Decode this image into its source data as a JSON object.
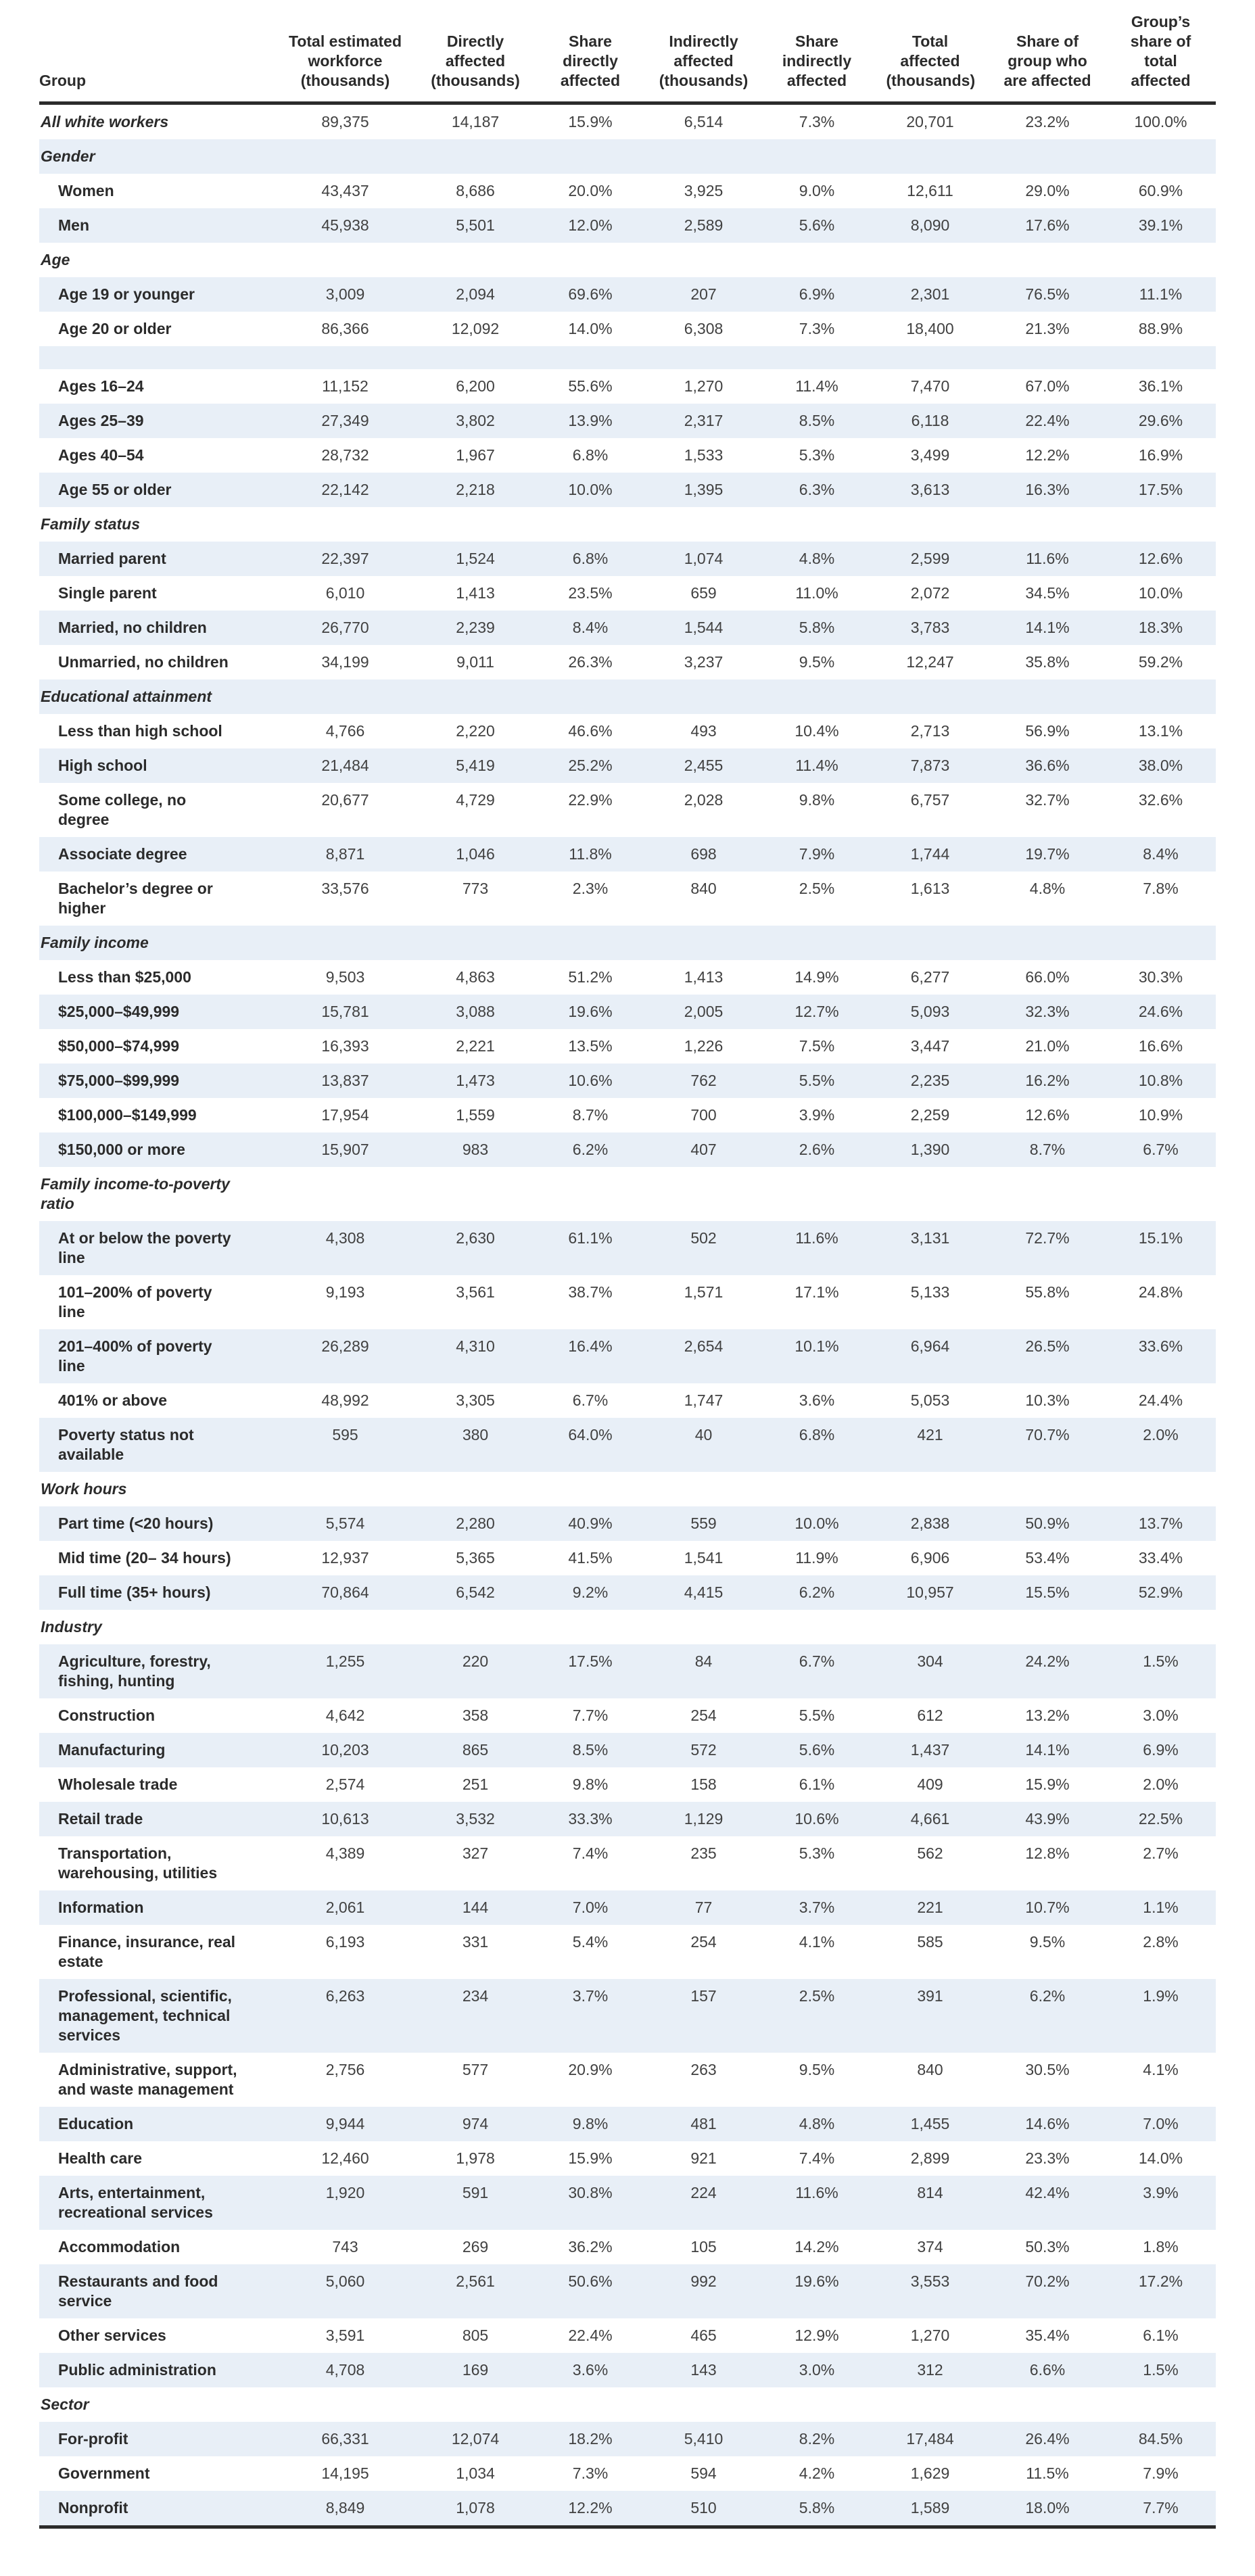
{
  "colors": {
    "stripe": "#e8eff7",
    "rule": "#2b2b2b",
    "label_text": "#2b2b2b",
    "value_text": "#414141"
  },
  "chart_data": {
    "type": "table",
    "title": "",
    "columns": [
      "Group",
      "Total estimated workforce (thousands)",
      "Directly affected (thousands)",
      "Share directly affected",
      "Indirectly affected (thousands)",
      "Share indirectly affected",
      "Total affected (thousands)",
      "Share of group who are affected",
      "Group’s share of total affected"
    ],
    "rows": [
      {
        "kind": "total",
        "label": "All white workers",
        "values": [
          "89,375",
          "14,187",
          "15.9%",
          "6,514",
          "7.3%",
          "20,701",
          "23.2%",
          "100.0%"
        ]
      },
      {
        "kind": "section",
        "label": "Gender"
      },
      {
        "kind": "data",
        "label": "Women",
        "values": [
          "43,437",
          "8,686",
          "20.0%",
          "3,925",
          "9.0%",
          "12,611",
          "29.0%",
          "60.9%"
        ]
      },
      {
        "kind": "data",
        "label": "Men",
        "values": [
          "45,938",
          "5,501",
          "12.0%",
          "2,589",
          "5.6%",
          "8,090",
          "17.6%",
          "39.1%"
        ]
      },
      {
        "kind": "section",
        "label": "Age"
      },
      {
        "kind": "data",
        "label": "Age 19 or younger",
        "values": [
          "3,009",
          "2,094",
          "69.6%",
          "207",
          "6.9%",
          "2,301",
          "76.5%",
          "11.1%"
        ]
      },
      {
        "kind": "data",
        "label": "Age 20 or older",
        "values": [
          "86,366",
          "12,092",
          "14.0%",
          "6,308",
          "7.3%",
          "18,400",
          "21.3%",
          "88.9%"
        ]
      },
      {
        "kind": "spacer"
      },
      {
        "kind": "data",
        "label": "Ages 16–24",
        "values": [
          "11,152",
          "6,200",
          "55.6%",
          "1,270",
          "11.4%",
          "7,470",
          "67.0%",
          "36.1%"
        ]
      },
      {
        "kind": "data",
        "label": "Ages 25–39",
        "values": [
          "27,349",
          "3,802",
          "13.9%",
          "2,317",
          "8.5%",
          "6,118",
          "22.4%",
          "29.6%"
        ]
      },
      {
        "kind": "data",
        "label": "Ages 40–54",
        "values": [
          "28,732",
          "1,967",
          "6.8%",
          "1,533",
          "5.3%",
          "3,499",
          "12.2%",
          "16.9%"
        ]
      },
      {
        "kind": "data",
        "label": "Age 55 or older",
        "values": [
          "22,142",
          "2,218",
          "10.0%",
          "1,395",
          "6.3%",
          "3,613",
          "16.3%",
          "17.5%"
        ]
      },
      {
        "kind": "section",
        "label": "Family status"
      },
      {
        "kind": "data",
        "label": "Married parent",
        "values": [
          "22,397",
          "1,524",
          "6.8%",
          "1,074",
          "4.8%",
          "2,599",
          "11.6%",
          "12.6%"
        ]
      },
      {
        "kind": "data",
        "label": "Single parent",
        "values": [
          "6,010",
          "1,413",
          "23.5%",
          "659",
          "11.0%",
          "2,072",
          "34.5%",
          "10.0%"
        ]
      },
      {
        "kind": "data",
        "label": "Married, no children",
        "values": [
          "26,770",
          "2,239",
          "8.4%",
          "1,544",
          "5.8%",
          "3,783",
          "14.1%",
          "18.3%"
        ]
      },
      {
        "kind": "data",
        "label": "Unmarried, no children",
        "values": [
          "34,199",
          "9,011",
          "26.3%",
          "3,237",
          "9.5%",
          "12,247",
          "35.8%",
          "59.2%"
        ]
      },
      {
        "kind": "section",
        "label": "Educational attainment"
      },
      {
        "kind": "data",
        "label": "Less than high school",
        "values": [
          "4,766",
          "2,220",
          "46.6%",
          "493",
          "10.4%",
          "2,713",
          "56.9%",
          "13.1%"
        ]
      },
      {
        "kind": "data",
        "label": "High school",
        "values": [
          "21,484",
          "5,419",
          "25.2%",
          "2,455",
          "11.4%",
          "7,873",
          "36.6%",
          "38.0%"
        ]
      },
      {
        "kind": "data",
        "label": "Some college, no degree",
        "values": [
          "20,677",
          "4,729",
          "22.9%",
          "2,028",
          "9.8%",
          "6,757",
          "32.7%",
          "32.6%"
        ]
      },
      {
        "kind": "data",
        "label": "Associate degree",
        "values": [
          "8,871",
          "1,046",
          "11.8%",
          "698",
          "7.9%",
          "1,744",
          "19.7%",
          "8.4%"
        ]
      },
      {
        "kind": "data",
        "label": "Bachelor’s degree or higher",
        "values": [
          "33,576",
          "773",
          "2.3%",
          "840",
          "2.5%",
          "1,613",
          "4.8%",
          "7.8%"
        ]
      },
      {
        "kind": "section",
        "label": "Family income"
      },
      {
        "kind": "data",
        "label": "Less than $25,000",
        "values": [
          "9,503",
          "4,863",
          "51.2%",
          "1,413",
          "14.9%",
          "6,277",
          "66.0%",
          "30.3%"
        ]
      },
      {
        "kind": "data",
        "label": "$25,000–$49,999",
        "values": [
          "15,781",
          "3,088",
          "19.6%",
          "2,005",
          "12.7%",
          "5,093",
          "32.3%",
          "24.6%"
        ]
      },
      {
        "kind": "data",
        "label": "$50,000–$74,999",
        "values": [
          "16,393",
          "2,221",
          "13.5%",
          "1,226",
          "7.5%",
          "3,447",
          "21.0%",
          "16.6%"
        ]
      },
      {
        "kind": "data",
        "label": "$75,000–$99,999",
        "values": [
          "13,837",
          "1,473",
          "10.6%",
          "762",
          "5.5%",
          "2,235",
          "16.2%",
          "10.8%"
        ]
      },
      {
        "kind": "data",
        "label": "$100,000–$149,999",
        "values": [
          "17,954",
          "1,559",
          "8.7%",
          "700",
          "3.9%",
          "2,259",
          "12.6%",
          "10.9%"
        ]
      },
      {
        "kind": "data",
        "label": "$150,000 or more",
        "values": [
          "15,907",
          "983",
          "6.2%",
          "407",
          "2.6%",
          "1,390",
          "8.7%",
          "6.7%"
        ]
      },
      {
        "kind": "section",
        "label": "Family income-to-poverty ratio"
      },
      {
        "kind": "data",
        "label": "At or below the poverty line",
        "values": [
          "4,308",
          "2,630",
          "61.1%",
          "502",
          "11.6%",
          "3,131",
          "72.7%",
          "15.1%"
        ]
      },
      {
        "kind": "data",
        "label": "101–200% of poverty line",
        "values": [
          "9,193",
          "3,561",
          "38.7%",
          "1,571",
          "17.1%",
          "5,133",
          "55.8%",
          "24.8%"
        ]
      },
      {
        "kind": "data",
        "label": "201–400% of poverty line",
        "values": [
          "26,289",
          "4,310",
          "16.4%",
          "2,654",
          "10.1%",
          "6,964",
          "26.5%",
          "33.6%"
        ]
      },
      {
        "kind": "data",
        "label": "401% or above",
        "values": [
          "48,992",
          "3,305",
          "6.7%",
          "1,747",
          "3.6%",
          "5,053",
          "10.3%",
          "24.4%"
        ]
      },
      {
        "kind": "data",
        "label": "Poverty status not available",
        "values": [
          "595",
          "380",
          "64.0%",
          "40",
          "6.8%",
          "421",
          "70.7%",
          "2.0%"
        ]
      },
      {
        "kind": "section",
        "label": "Work hours"
      },
      {
        "kind": "data",
        "label": "Part time (<20 hours)",
        "values": [
          "5,574",
          "2,280",
          "40.9%",
          "559",
          "10.0%",
          "2,838",
          "50.9%",
          "13.7%"
        ]
      },
      {
        "kind": "data",
        "label": "Mid time (20– 34 hours)",
        "values": [
          "12,937",
          "5,365",
          "41.5%",
          "1,541",
          "11.9%",
          "6,906",
          "53.4%",
          "33.4%"
        ]
      },
      {
        "kind": "data",
        "label": "Full time (35+ hours)",
        "values": [
          "70,864",
          "6,542",
          "9.2%",
          "4,415",
          "6.2%",
          "10,957",
          "15.5%",
          "52.9%"
        ]
      },
      {
        "kind": "section",
        "label": "Industry"
      },
      {
        "kind": "data",
        "label": "Agriculture, forestry, fishing, hunting",
        "values": [
          "1,255",
          "220",
          "17.5%",
          "84",
          "6.7%",
          "304",
          "24.2%",
          "1.5%"
        ]
      },
      {
        "kind": "data",
        "label": "Construction",
        "values": [
          "4,642",
          "358",
          "7.7%",
          "254",
          "5.5%",
          "612",
          "13.2%",
          "3.0%"
        ]
      },
      {
        "kind": "data",
        "label": "Manufacturing",
        "values": [
          "10,203",
          "865",
          "8.5%",
          "572",
          "5.6%",
          "1,437",
          "14.1%",
          "6.9%"
        ]
      },
      {
        "kind": "data",
        "label": "Wholesale trade",
        "values": [
          "2,574",
          "251",
          "9.8%",
          "158",
          "6.1%",
          "409",
          "15.9%",
          "2.0%"
        ]
      },
      {
        "kind": "data",
        "label": "Retail trade",
        "values": [
          "10,613",
          "3,532",
          "33.3%",
          "1,129",
          "10.6%",
          "4,661",
          "43.9%",
          "22.5%"
        ]
      },
      {
        "kind": "data",
        "label": "Transportation, warehousing, utilities",
        "values": [
          "4,389",
          "327",
          "7.4%",
          "235",
          "5.3%",
          "562",
          "12.8%",
          "2.7%"
        ]
      },
      {
        "kind": "data",
        "label": "Information",
        "values": [
          "2,061",
          "144",
          "7.0%",
          "77",
          "3.7%",
          "221",
          "10.7%",
          "1.1%"
        ]
      },
      {
        "kind": "data",
        "label": "Finance, insurance, real estate",
        "values": [
          "6,193",
          "331",
          "5.4%",
          "254",
          "4.1%",
          "585",
          "9.5%",
          "2.8%"
        ]
      },
      {
        "kind": "data",
        "label": "Professional, scientific, management, technical services",
        "values": [
          "6,263",
          "234",
          "3.7%",
          "157",
          "2.5%",
          "391",
          "6.2%",
          "1.9%"
        ]
      },
      {
        "kind": "data",
        "label": "Administrative, support, and waste management",
        "values": [
          "2,756",
          "577",
          "20.9%",
          "263",
          "9.5%",
          "840",
          "30.5%",
          "4.1%"
        ]
      },
      {
        "kind": "data",
        "label": "Education",
        "values": [
          "9,944",
          "974",
          "9.8%",
          "481",
          "4.8%",
          "1,455",
          "14.6%",
          "7.0%"
        ]
      },
      {
        "kind": "data",
        "label": "Health care",
        "values": [
          "12,460",
          "1,978",
          "15.9%",
          "921",
          "7.4%",
          "2,899",
          "23.3%",
          "14.0%"
        ]
      },
      {
        "kind": "data",
        "label": "Arts, entertainment, recreational services",
        "values": [
          "1,920",
          "591",
          "30.8%",
          "224",
          "11.6%",
          "814",
          "42.4%",
          "3.9%"
        ]
      },
      {
        "kind": "data",
        "label": "Accommodation",
        "values": [
          "743",
          "269",
          "36.2%",
          "105",
          "14.2%",
          "374",
          "50.3%",
          "1.8%"
        ]
      },
      {
        "kind": "data",
        "label": "Restaurants and food service",
        "values": [
          "5,060",
          "2,561",
          "50.6%",
          "992",
          "19.6%",
          "3,553",
          "70.2%",
          "17.2%"
        ]
      },
      {
        "kind": "data",
        "label": "Other services",
        "values": [
          "3,591",
          "805",
          "22.4%",
          "465",
          "12.9%",
          "1,270",
          "35.4%",
          "6.1%"
        ]
      },
      {
        "kind": "data",
        "label": "Public administration",
        "values": [
          "4,708",
          "169",
          "3.6%",
          "143",
          "3.0%",
          "312",
          "6.6%",
          "1.5%"
        ]
      },
      {
        "kind": "section",
        "label": "Sector"
      },
      {
        "kind": "data",
        "label": "For-profit",
        "values": [
          "66,331",
          "12,074",
          "18.2%",
          "5,410",
          "8.2%",
          "17,484",
          "26.4%",
          "84.5%"
        ]
      },
      {
        "kind": "data",
        "label": "Government",
        "values": [
          "14,195",
          "1,034",
          "7.3%",
          "594",
          "4.2%",
          "1,629",
          "11.5%",
          "7.9%"
        ]
      },
      {
        "kind": "data",
        "label": "Nonprofit",
        "values": [
          "8,849",
          "1,078",
          "12.2%",
          "510",
          "5.8%",
          "1,589",
          "18.0%",
          "7.7%"
        ]
      }
    ]
  }
}
